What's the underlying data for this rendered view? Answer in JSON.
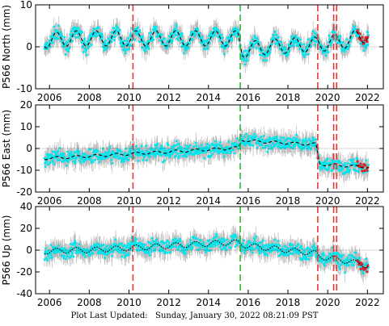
{
  "footer": {
    "label": "Plot Last Updated:",
    "date": "Sunday, January 30, 2022 08:21:09 PST"
  },
  "colors": {
    "observation": "#00e5ee",
    "error_bar": "#b8b8b8",
    "model": "#000000",
    "recent_points": "#e0202a",
    "offset_line_red": "#e53935",
    "offset_line_green": "#2eb82e"
  },
  "chart_data": [
    {
      "type": "scatter",
      "station": "P566",
      "ylabel": "P566 North (mm)",
      "xlim": [
        2005.3,
        2022.8
      ],
      "ylim": [
        -10,
        10
      ],
      "yticks": [
        -10,
        0,
        10
      ],
      "xticks": [
        2006,
        2008,
        2010,
        2012,
        2014,
        2016,
        2018,
        2020,
        2022
      ],
      "offset_lines": [
        {
          "x": 2010.2,
          "color": "red"
        },
        {
          "x": 2015.6,
          "color": "green"
        },
        {
          "x": 2019.5,
          "color": "red"
        },
        {
          "x": 2020.3,
          "color": "red"
        },
        {
          "x": 2020.45,
          "color": "red"
        }
      ],
      "series": [
        {
          "x": [
            2006,
            2007,
            2008,
            2009,
            2010,
            2011,
            2012,
            2013,
            2014,
            2015,
            2015.5,
            2015.7,
            2016,
            2017,
            2018,
            2019,
            2019.4,
            2019.6,
            2020,
            2021,
            2022
          ],
          "y": [
            1.5,
            2.0,
            2.0,
            2.0,
            2.0,
            2.0,
            2.0,
            2.0,
            2.0,
            2.0,
            2.0,
            -1.0,
            -0.5,
            0.0,
            0.3,
            0.5,
            0.5,
            0.5,
            1.0,
            1.5,
            3.0
          ]
        }
      ],
      "seasonal_amplitude": 1.8
    },
    {
      "type": "scatter",
      "station": "P566",
      "ylabel": "P566 East (mm)",
      "xlim": [
        2005.3,
        2022.8
      ],
      "ylim": [
        -20,
        20
      ],
      "yticks": [
        -20,
        -10,
        0,
        10,
        20
      ],
      "xticks": [
        2006,
        2008,
        2010,
        2012,
        2014,
        2016,
        2018,
        2020,
        2022
      ],
      "offset_lines": [
        {
          "x": 2010.2,
          "color": "red"
        },
        {
          "x": 2015.6,
          "color": "green"
        },
        {
          "x": 2019.5,
          "color": "red"
        },
        {
          "x": 2020.3,
          "color": "red"
        },
        {
          "x": 2020.45,
          "color": "red"
        }
      ],
      "series": [
        {
          "x": [
            2006,
            2007,
            2008,
            2009,
            2010,
            2011,
            2012,
            2013,
            2014,
            2015,
            2015.5,
            2015.7,
            2016,
            2017,
            2018,
            2019,
            2019.4,
            2019.6,
            2020,
            2021,
            2022
          ],
          "y": [
            -4.5,
            -4.0,
            -3.5,
            -3.0,
            -2.5,
            -2.0,
            -1.5,
            -1.0,
            -0.5,
            0.0,
            0.3,
            4.0,
            3.5,
            3.0,
            2.5,
            2.0,
            2.0,
            -7.0,
            -7.5,
            -8.0,
            -8.5
          ]
        }
      ],
      "seasonal_amplitude": 0.6
    },
    {
      "type": "scatter",
      "station": "P566",
      "ylabel": "P566 Up (mm)",
      "xlim": [
        2005.3,
        2022.8
      ],
      "ylim": [
        -40,
        40
      ],
      "yticks": [
        -40,
        -20,
        0,
        20,
        40
      ],
      "xticks": [
        2006,
        2008,
        2010,
        2012,
        2014,
        2016,
        2018,
        2020,
        2022
      ],
      "offset_lines": [
        {
          "x": 2010.2,
          "color": "red"
        },
        {
          "x": 2015.6,
          "color": "green"
        },
        {
          "x": 2019.5,
          "color": "red"
        },
        {
          "x": 2020.3,
          "color": "red"
        },
        {
          "x": 2020.45,
          "color": "red"
        }
      ],
      "series": [
        {
          "x": [
            2006,
            2007,
            2008,
            2009,
            2010,
            2011,
            2012,
            2013,
            2014,
            2015,
            2015.5,
            2015.7,
            2016,
            2017,
            2018,
            2019,
            2019.4,
            2019.6,
            2020,
            2021,
            2022
          ],
          "y": [
            -1,
            0,
            0,
            1,
            2,
            3,
            4,
            5,
            6,
            7,
            7,
            5,
            4,
            2,
            0,
            -2,
            -3,
            -6,
            -7,
            -10,
            -14
          ]
        }
      ],
      "seasonal_amplitude": 2.5
    }
  ]
}
